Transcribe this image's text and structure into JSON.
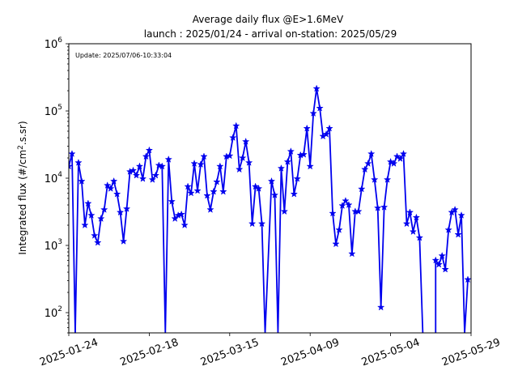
{
  "chart_data": {
    "type": "line",
    "title": "Average daily flux @E>1.6MeV",
    "subtitle": "launch : 2025/01/24 - arrival on-station: 2025/05/29",
    "annotation": "Update: 2025/07/06-10:33:04",
    "xlabel": "",
    "ylabel": "Integrated flux (#/cm",
    "ylabel_sup": "2",
    "ylabel_tail": ".s.sr)",
    "yscale": "log",
    "ylim": [
      50,
      1000000
    ],
    "xlim": [
      "2025-01-24",
      "2025-05-29"
    ],
    "x_ticks": [
      "2025-01-24",
      "2025-02-18",
      "2025-03-15",
      "2025-04-09",
      "2025-05-04",
      "2025-05-29"
    ],
    "y_ticks": [
      {
        "value": 100,
        "base": "10",
        "exp": "2"
      },
      {
        "value": 1000,
        "base": "10",
        "exp": "3"
      },
      {
        "value": 10000,
        "base": "10",
        "exp": "4"
      },
      {
        "value": 100000,
        "base": "10",
        "exp": "5"
      },
      {
        "value": 1000000,
        "base": "10",
        "exp": "6"
      }
    ],
    "grid": false,
    "color": "#0000ee",
    "series": [
      {
        "marker": "star",
        "points": [
          [
            "2025-01-24",
            15000
          ],
          [
            "2025-01-25",
            23000
          ],
          [
            "2025-01-26",
            40
          ],
          [
            "2025-01-27",
            17000
          ],
          [
            "2025-01-28",
            9000
          ],
          [
            "2025-01-29",
            2000
          ],
          [
            "2025-01-30",
            4200
          ],
          [
            "2025-01-31",
            2800
          ],
          [
            "2025-02-01",
            1400
          ],
          [
            "2025-02-02",
            1100
          ],
          [
            "2025-02-03",
            2500
          ],
          [
            "2025-02-04",
            3400
          ],
          [
            "2025-02-05",
            7800
          ],
          [
            "2025-02-06",
            7000
          ],
          [
            "2025-02-07",
            9000
          ],
          [
            "2025-02-08",
            5800
          ],
          [
            "2025-02-09",
            3100
          ],
          [
            "2025-02-10",
            1150
          ],
          [
            "2025-02-11",
            3500
          ],
          [
            "2025-02-12",
            12500
          ],
          [
            "2025-02-13",
            13000
          ],
          [
            "2025-02-14",
            11000
          ],
          [
            "2025-02-15",
            15000
          ],
          [
            "2025-02-16",
            9800
          ],
          [
            "2025-02-17",
            21000
          ],
          [
            "2025-02-18",
            26000
          ],
          [
            "2025-02-19",
            9500
          ],
          [
            "2025-02-20",
            11000
          ],
          [
            "2025-02-21",
            15500
          ],
          [
            "2025-02-22",
            15000
          ],
          [
            "2025-02-23",
            40
          ],
          [
            "2025-02-24",
            19000
          ],
          [
            "2025-02-25",
            4500
          ],
          [
            "2025-02-26",
            2500
          ],
          [
            "2025-02-27",
            2800
          ],
          [
            "2025-02-28",
            2900
          ],
          [
            "2025-03-01",
            2000
          ],
          [
            "2025-03-02",
            7500
          ],
          [
            "2025-03-03",
            6000
          ],
          [
            "2025-03-04",
            16500
          ],
          [
            "2025-03-05",
            6500
          ],
          [
            "2025-03-06",
            16000
          ],
          [
            "2025-03-07",
            21000
          ],
          [
            "2025-03-08",
            5500
          ],
          [
            "2025-03-09",
            3400
          ],
          [
            "2025-03-10",
            6300
          ],
          [
            "2025-03-11",
            8800
          ],
          [
            "2025-03-12",
            15000
          ],
          [
            "2025-03-13",
            6300
          ],
          [
            "2025-03-14",
            21000
          ],
          [
            "2025-03-15",
            21500
          ],
          [
            "2025-03-16",
            40000
          ],
          [
            "2025-03-17",
            60000
          ],
          [
            "2025-03-18",
            13500
          ],
          [
            "2025-03-19",
            20000
          ],
          [
            "2025-03-20",
            35000
          ],
          [
            "2025-03-21",
            17000
          ],
          [
            "2025-03-22",
            2100
          ],
          [
            "2025-03-23",
            7500
          ],
          [
            "2025-03-24",
            7000
          ],
          [
            "2025-03-25",
            2100
          ],
          [
            "2025-03-26",
            40
          ],
          [
            "2025-03-28",
            9000
          ],
          [
            "2025-03-29",
            5600
          ],
          [
            "2025-03-30",
            40
          ],
          [
            "2025-03-31",
            14000
          ],
          [
            "2025-04-01",
            3200
          ],
          [
            "2025-04-02",
            17500
          ],
          [
            "2025-04-03",
            25000
          ],
          [
            "2025-04-04",
            5800
          ],
          [
            "2025-04-05",
            9800
          ],
          [
            "2025-04-06",
            22000
          ],
          [
            "2025-04-07",
            22500
          ],
          [
            "2025-04-08",
            55000
          ],
          [
            "2025-04-09",
            15000
          ],
          [
            "2025-04-10",
            92000
          ],
          [
            "2025-04-11",
            215000
          ],
          [
            "2025-04-12",
            110000
          ],
          [
            "2025-04-13",
            42000
          ],
          [
            "2025-04-14",
            45000
          ],
          [
            "2025-04-15",
            55000
          ],
          [
            "2025-04-16",
            3000
          ],
          [
            "2025-04-17",
            1050
          ],
          [
            "2025-04-18",
            1700
          ],
          [
            "2025-04-19",
            3900
          ],
          [
            "2025-04-20",
            4600
          ],
          [
            "2025-04-21",
            4000
          ],
          [
            "2025-04-22",
            750
          ],
          [
            "2025-04-23",
            3200
          ],
          [
            "2025-04-24",
            3200
          ],
          [
            "2025-04-25",
            6900
          ],
          [
            "2025-04-26",
            13500
          ],
          [
            "2025-04-27",
            16500
          ],
          [
            "2025-04-28",
            23000
          ],
          [
            "2025-04-29",
            9500
          ],
          [
            "2025-04-30",
            3600
          ],
          [
            "2025-05-01",
            120
          ],
          [
            "2025-05-02",
            3700
          ],
          [
            "2025-05-03",
            9500
          ],
          [
            "2025-05-04",
            17500
          ],
          [
            "2025-05-05",
            16500
          ],
          [
            "2025-05-06",
            21000
          ],
          [
            "2025-05-07",
            19500
          ],
          [
            "2025-05-08",
            23000
          ],
          [
            "2025-05-09",
            2100
          ],
          [
            "2025-05-10",
            3100
          ],
          [
            "2025-05-11",
            1600
          ],
          [
            "2025-05-12",
            2600
          ],
          [
            "2025-05-13",
            1300
          ],
          [
            "2025-05-14",
            40
          ]
        ]
      },
      {
        "marker": "star",
        "points": [
          [
            "2025-05-18",
            40
          ],
          [
            "2025-05-18",
            600
          ],
          [
            "2025-05-19",
            520
          ],
          [
            "2025-05-20",
            700
          ],
          [
            "2025-05-21",
            440
          ],
          [
            "2025-05-22",
            1700
          ],
          [
            "2025-05-23",
            3100
          ],
          [
            "2025-05-24",
            3400
          ],
          [
            "2025-05-25",
            1450
          ],
          [
            "2025-05-26",
            2800
          ],
          [
            "2025-05-27",
            40
          ],
          [
            "2025-05-28",
            310
          ]
        ]
      }
    ]
  }
}
